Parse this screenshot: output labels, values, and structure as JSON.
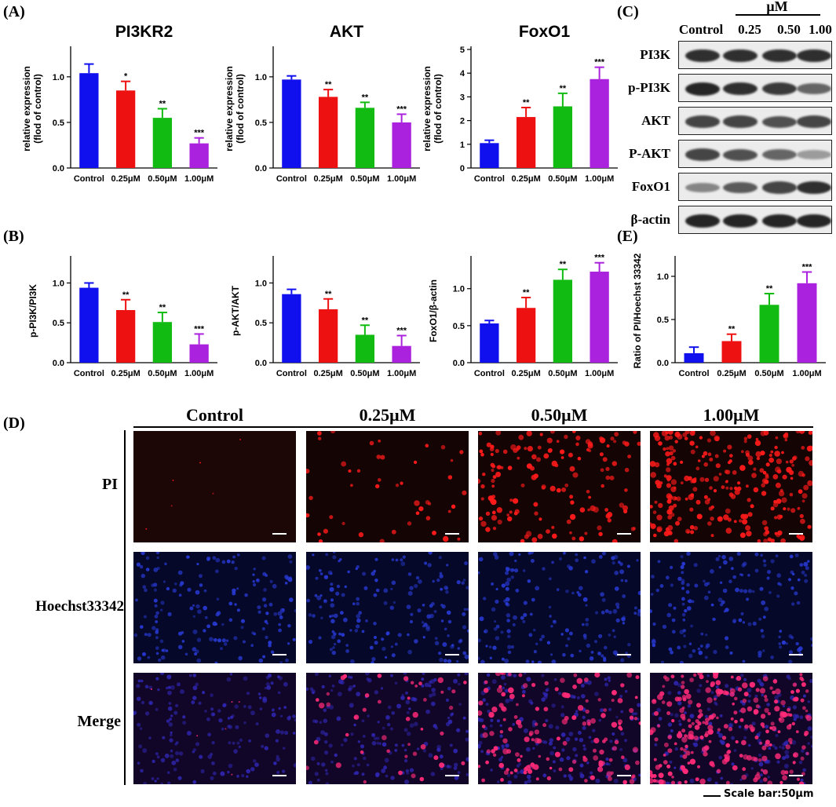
{
  "panel_labels": {
    "a": "(A)",
    "b": "(B)",
    "c": "(C)",
    "d": "(D)",
    "e": "(E)"
  },
  "colors": {
    "control": "#1010ee",
    "c025": "#ee1111",
    "c050": "#11bb11",
    "c100": "#aa22dd"
  },
  "chart_data": [
    {
      "id": "a1",
      "type": "bar",
      "title": "PI3KR2",
      "ylabel_lines": [
        "relative expression",
        "(flod of control)"
      ],
      "categories": [
        "Control",
        "0.25μM",
        "0.50μM",
        "1.00μM"
      ],
      "values": [
        1.04,
        0.85,
        0.55,
        0.27
      ],
      "errors": [
        0.1,
        0.1,
        0.1,
        0.06
      ],
      "significance": [
        "",
        "*",
        "**",
        "***"
      ],
      "ylim": [
        0,
        1.3
      ],
      "yticks": [
        0,
        0.5,
        1.0
      ],
      "tick_labels": [
        "0.0",
        "0.5",
        "1.0"
      ]
    },
    {
      "id": "a2",
      "type": "bar",
      "title": "AKT",
      "ylabel_lines": [
        "relative expression",
        "(flod of control)"
      ],
      "categories": [
        "Control",
        "0.25μM",
        "0.50μM",
        "1.00μM"
      ],
      "values": [
        0.97,
        0.78,
        0.66,
        0.5
      ],
      "errors": [
        0.04,
        0.08,
        0.06,
        0.09
      ],
      "significance": [
        "",
        "**",
        "**",
        "***"
      ],
      "ylim": [
        0,
        1.3
      ],
      "yticks": [
        0,
        0.5,
        1.0
      ],
      "tick_labels": [
        "0.0",
        "0.5",
        "1.0"
      ]
    },
    {
      "id": "a3",
      "type": "bar",
      "title": "FoxO1",
      "ylabel_lines": [
        "relative expression",
        "(flod of control)"
      ],
      "categories": [
        "Control",
        "0.25μM",
        "0.50μM",
        "1.00μM"
      ],
      "values": [
        1.05,
        2.15,
        2.6,
        3.75
      ],
      "errors": [
        0.12,
        0.4,
        0.55,
        0.5
      ],
      "significance": [
        "",
        "**",
        "**",
        "***"
      ],
      "ylim": [
        0,
        5
      ],
      "yticks": [
        0,
        1,
        2,
        3,
        4,
        5
      ],
      "tick_labels": [
        "0",
        "1",
        "2",
        "3",
        "4",
        "5"
      ]
    },
    {
      "id": "b1",
      "type": "bar",
      "title": "",
      "ylabel_lines": [
        "p-PI3K/PI3K"
      ],
      "categories": [
        "Control",
        "0.25μM",
        "0.50μM",
        "1.00μM"
      ],
      "values": [
        0.94,
        0.66,
        0.51,
        0.23
      ],
      "errors": [
        0.06,
        0.13,
        0.12,
        0.13
      ],
      "significance": [
        "",
        "**",
        "**",
        "***"
      ],
      "ylim": [
        0,
        1.3
      ],
      "yticks": [
        0,
        0.5,
        1.0
      ],
      "tick_labels": [
        "0.0",
        "0.5",
        "1.0"
      ]
    },
    {
      "id": "b2",
      "type": "bar",
      "title": "",
      "ylabel_lines": [
        "p-AKT/AKT"
      ],
      "categories": [
        "Control",
        "0.25μM",
        "0.50μM",
        "1.00μM"
      ],
      "values": [
        0.86,
        0.67,
        0.35,
        0.21
      ],
      "errors": [
        0.06,
        0.13,
        0.12,
        0.13
      ],
      "significance": [
        "",
        "**",
        "**",
        "***"
      ],
      "ylim": [
        0,
        1.3
      ],
      "yticks": [
        0,
        0.5,
        1.0
      ],
      "tick_labels": [
        "0.0",
        "0.5",
        "1.0"
      ]
    },
    {
      "id": "b3",
      "type": "bar",
      "title": "",
      "ylabel_lines": [
        "FoxO1/β-actin"
      ],
      "categories": [
        "Control",
        "0.25μM",
        "0.50μM",
        "1.00μM"
      ],
      "values": [
        0.53,
        0.74,
        1.12,
        1.23
      ],
      "errors": [
        0.04,
        0.14,
        0.14,
        0.12
      ],
      "significance": [
        "",
        "**",
        "**",
        "***"
      ],
      "ylim": [
        0,
        1.4
      ],
      "yticks": [
        0,
        0.5,
        1.0
      ],
      "tick_labels": [
        "0.0",
        "0.5",
        "1.0"
      ]
    },
    {
      "id": "e1",
      "type": "bar",
      "title": "",
      "ylabel_lines": [
        "Ratio of PI/Hoechst 33342"
      ],
      "categories": [
        "Control",
        "0.25μM",
        "0.50μM",
        "1.00μM"
      ],
      "values": [
        0.11,
        0.25,
        0.67,
        0.92
      ],
      "errors": [
        0.07,
        0.08,
        0.13,
        0.13
      ],
      "significance": [
        "",
        "**",
        "**",
        "***"
      ],
      "ylim": [
        0,
        1.2
      ],
      "yticks": [
        0,
        0.5,
        1.0
      ],
      "tick_labels": [
        "0.0",
        "0.5",
        "1.0"
      ]
    }
  ],
  "western_blot": {
    "unit_label": "μM",
    "columns": [
      "Control",
      "0.25",
      "0.50",
      "1.00"
    ],
    "rows": [
      {
        "label": "PI3K",
        "intensity": [
          0.85,
          0.85,
          0.85,
          0.85
        ]
      },
      {
        "label": "p-PI3K",
        "intensity": [
          0.9,
          0.85,
          0.8,
          0.6
        ]
      },
      {
        "label": "AKT",
        "intensity": [
          0.75,
          0.75,
          0.7,
          0.75
        ]
      },
      {
        "label": "P-AKT",
        "intensity": [
          0.75,
          0.7,
          0.6,
          0.35
        ]
      },
      {
        "label": "FoxO1",
        "intensity": [
          0.45,
          0.65,
          0.75,
          0.85
        ]
      },
      {
        "label": "β-actin",
        "intensity": [
          0.9,
          0.9,
          0.9,
          0.9
        ]
      }
    ]
  },
  "micrographs": {
    "columns": [
      "Control",
      "0.25μM",
      "0.50μM",
      "1.00μM"
    ],
    "rows": [
      "PI",
      "Hoechst33342",
      "Merge"
    ],
    "scale_bar": "Scale bar:50μm"
  }
}
